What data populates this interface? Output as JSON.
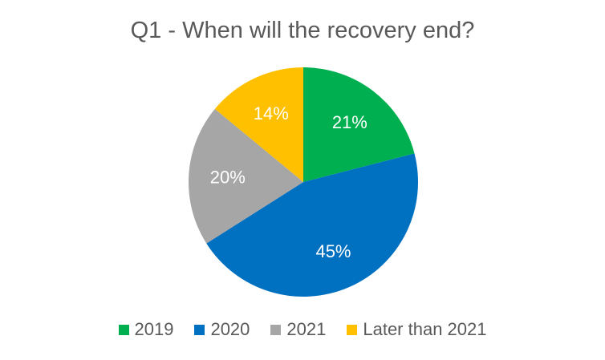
{
  "chart_data": {
    "type": "pie",
    "title": "Q1 - When will the recovery end?",
    "categories": [
      "2019",
      "2020",
      "2021",
      "Later than 2021"
    ],
    "values": [
      21,
      45,
      20,
      14
    ],
    "labels": [
      "21%",
      "45%",
      "20%",
      "14%"
    ],
    "colors": [
      "#00B050",
      "#0070C0",
      "#A6A6A6",
      "#FFC000"
    ],
    "legend_position": "bottom",
    "start_angle": "12 o'clock, clockwise"
  }
}
